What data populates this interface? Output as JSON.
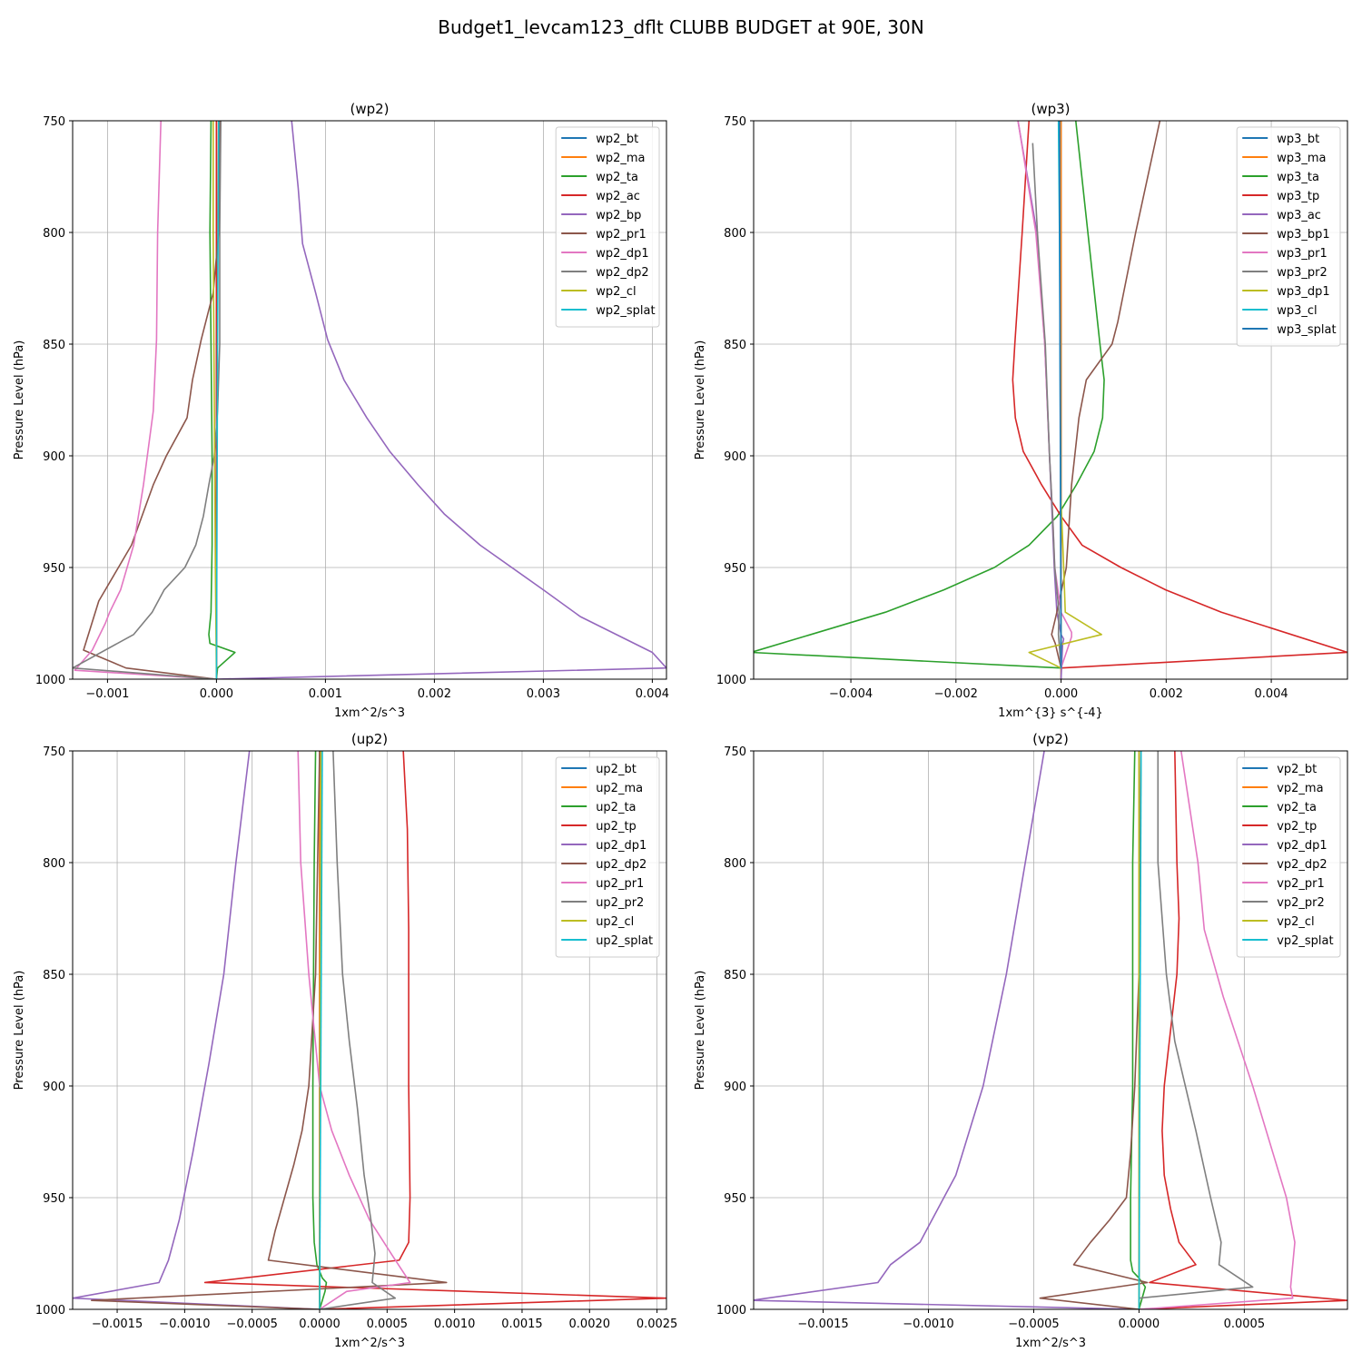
{
  "figure_title": "Budget1_levcam123_dflt CLUBB BUDGET at 90E, 30N",
  "colors": [
    "#1f77b4",
    "#ff7f0e",
    "#2ca02c",
    "#d62728",
    "#9467bd",
    "#8c564b",
    "#e377c2",
    "#7f7f7f",
    "#bcbd22",
    "#17becf"
  ],
  "chart_data": [
    {
      "type": "line",
      "title": "(wp2)",
      "xlabel": "1xm^2/s^3",
      "ylabel": "Pressure Level (hPa)",
      "xlim": [
        -0.00132,
        0.00413
      ],
      "ylim": [
        1000,
        750
      ],
      "grid": true,
      "legend": "top-right",
      "xticks": [
        -0.001,
        0.0,
        0.001,
        0.002,
        0.003,
        0.004
      ],
      "xtick_labels": [
        "−0.001",
        "0.000",
        "0.001",
        "0.002",
        "0.003",
        "0.004"
      ],
      "yticks": [
        750,
        800,
        850,
        900,
        950,
        1000
      ],
      "ytick_labels": [
        "750",
        "800",
        "850",
        "900",
        "950",
        "1000"
      ],
      "series": [
        {
          "name": "wp2_bt",
          "x": [
            0,
            0
          ],
          "y": [
            1000,
            750
          ]
        },
        {
          "name": "wp2_ma",
          "x": [
            0,
            0
          ],
          "y": [
            1000,
            750
          ]
        },
        {
          "name": "wp2_ta",
          "x": [
            -5e-05,
            -6e-05,
            -5e-05,
            -4e-05,
            -4e-05,
            -5e-05,
            -7e-05,
            -6e-05,
            0.00017,
            1e-05,
            0.0
          ],
          "y": [
            750,
            800,
            850,
            900,
            940,
            970,
            980,
            984,
            988,
            995,
            1000
          ]
        },
        {
          "name": "wp2_ac",
          "x": [
            0,
            0
          ],
          "y": [
            1000,
            750
          ]
        },
        {
          "name": "wp2_bp",
          "x": [
            0.00069,
            0.00075,
            0.00079,
            0.00091,
            0.00102,
            0.00117,
            0.00138,
            0.00159,
            0.00185,
            0.00209,
            0.00242,
            0.003,
            0.00334,
            0.004,
            0.00413,
            0.0
          ],
          "y": [
            750,
            780,
            805,
            827,
            848,
            866,
            883,
            898,
            913,
            926,
            940,
            960,
            972,
            988,
            995,
            1000
          ]
        },
        {
          "name": "wp2_pr1",
          "x": [
            3e-05,
            2e-05,
            -3e-05,
            -0.00014,
            -0.00022,
            -0.00027,
            -0.00046,
            -0.00058,
            -0.00078,
            -0.00108,
            -0.00122,
            -0.00083,
            0.0
          ],
          "y": [
            750,
            800,
            827,
            848,
            866,
            883,
            900,
            913,
            940,
            965,
            987,
            995,
            1000
          ]
        },
        {
          "name": "wp2_dp1",
          "x": [
            -0.00051,
            -0.00054,
            -0.00055,
            -0.00058,
            -0.00067,
            -0.00076,
            -0.00088,
            -0.00098,
            -0.00102,
            -0.00114,
            -0.0013,
            0.0
          ],
          "y": [
            750,
            800,
            848,
            880,
            913,
            940,
            960,
            970,
            975,
            987,
            996,
            1000
          ]
        },
        {
          "name": "wp2_dp2",
          "x": [
            4e-05,
            3e-05,
            3e-05,
            1e-05,
            -2e-05,
            -7e-05,
            -0.00012,
            -0.00019,
            -0.00029,
            -0.00048,
            -0.00059,
            -0.00076,
            -0.00132,
            0.0
          ],
          "y": [
            750,
            800,
            850,
            880,
            900,
            913,
            927,
            940,
            950,
            960,
            970,
            980,
            995,
            1000
          ]
        },
        {
          "name": "wp2_cl",
          "x": [
            -3e-05,
            -3e-05,
            -1e-05,
            0.0
          ],
          "y": [
            750,
            800,
            950,
            1000
          ]
        },
        {
          "name": "wp2_splat",
          "x": [
            2e-05,
            1e-05,
            0.0
          ],
          "y": [
            750,
            850,
            1000
          ]
        }
      ]
    },
    {
      "type": "line",
      "title": "(wp3)",
      "xlabel": "1xm^{3} s^{-4}",
      "ylabel": "Pressure Level (hPa)",
      "xlim": [
        -0.00585,
        0.00545
      ],
      "ylim": [
        1000,
        750
      ],
      "grid": true,
      "legend": "top-right",
      "xticks": [
        -0.004,
        -0.002,
        0.0,
        0.002,
        0.004
      ],
      "xtick_labels": [
        "−0.004",
        "−0.002",
        "0.000",
        "0.002",
        "0.004"
      ],
      "yticks": [
        750,
        800,
        850,
        900,
        950,
        1000
      ],
      "ytick_labels": [
        "750",
        "800",
        "850",
        "900",
        "950",
        "1000"
      ],
      "series": [
        {
          "name": "wp3_bt",
          "x": [
            0,
            0
          ],
          "y": [
            1000,
            750
          ]
        },
        {
          "name": "wp3_ma",
          "x": [
            0,
            0
          ],
          "y": [
            1000,
            750
          ]
        },
        {
          "name": "wp3_ta",
          "x": [
            0.00028,
            0.00051,
            0.00074,
            0.00082,
            0.00079,
            0.00063,
            0.00029,
            -7e-05,
            -0.00061,
            -0.00127,
            -0.00223,
            -0.00334,
            -0.0059,
            0.0
          ],
          "y": [
            750,
            800,
            850,
            866,
            883,
            898,
            913,
            927,
            940,
            950,
            960,
            970,
            988,
            995
          ]
        },
        {
          "name": "wp3_tp",
          "x": [
            -0.00061,
            -0.00074,
            -0.00088,
            -0.00092,
            -0.00087,
            -0.00072,
            -0.00037,
            0.0,
            0.0004,
            0.00114,
            0.00199,
            0.00305,
            0.00545,
            0.0
          ],
          "y": [
            750,
            800,
            850,
            866,
            883,
            898,
            913,
            927,
            940,
            950,
            960,
            970,
            988,
            995
          ]
        },
        {
          "name": "wp3_ac",
          "x": [
            -0.00082,
            -0.00046,
            -0.00031,
            -0.00022,
            -0.00017,
            -0.00013,
            -8e-05,
            0.0,
            5e-05,
            3e-05,
            0.0
          ],
          "y": [
            750,
            800,
            850,
            900,
            927,
            950,
            970,
            980,
            982,
            984,
            1000
          ]
        },
        {
          "name": "wp3_bp1",
          "x": [
            0.00188,
            0.00142,
            0.00108,
            0.00097,
            0.00048,
            0.00034,
            0.0002,
            0.0001,
            -8e-05,
            -0.00018,
            -0.00011,
            0.0
          ],
          "y": [
            750,
            800,
            840,
            850,
            866,
            883,
            913,
            950,
            970,
            980,
            984,
            995
          ]
        },
        {
          "name": "wp3_pr1",
          "x": [
            -0.00082,
            -0.00048,
            -0.00031,
            -0.00022,
            -0.00016,
            -0.00012,
            0.0,
            0.0002,
            0.0002,
            0.0
          ],
          "y": [
            750,
            800,
            850,
            900,
            927,
            950,
            970,
            979,
            981,
            995
          ]
        },
        {
          "name": "wp3_pr2",
          "x": [
            -0.00054,
            -0.00045,
            -0.0003,
            -0.00022,
            -0.00016,
            -0.00012,
            -4e-05,
            -5e-05,
            0.0
          ],
          "y": [
            760,
            800,
            850,
            900,
            927,
            950,
            970,
            980,
            995
          ]
        },
        {
          "name": "wp3_dp1",
          "x": [
            0.0,
            5e-05,
            8e-05,
            0.00077,
            -0.00061,
            0.0
          ],
          "y": [
            920,
            950,
            970,
            980,
            988,
            995
          ]
        },
        {
          "name": "wp3_cl",
          "x": [
            -5e-05,
            -3e-05,
            -1e-05,
            0.0
          ],
          "y": [
            750,
            800,
            900,
            995
          ]
        },
        {
          "name": "wp3_splat",
          "x": [
            -3e-05,
            -2e-05,
            0.0
          ],
          "y": [
            750,
            850,
            995
          ]
        }
      ]
    },
    {
      "type": "line",
      "title": "(up2)",
      "xlabel": "1xm^2/s^3",
      "ylabel": "Pressure Level (hPa)",
      "xlim": [
        -0.00183,
        0.00257
      ],
      "ylim": [
        1000,
        750
      ],
      "grid": true,
      "legend": "top-right",
      "xticks": [
        -0.0015,
        -0.001,
        -0.0005,
        0.0,
        0.0005,
        0.001,
        0.0015,
        0.002,
        0.0025
      ],
      "xtick_labels": [
        "−0.0015",
        "−0.0010",
        "−0.0005",
        "0.0000",
        "0.0005",
        "0.0010",
        "0.0015",
        "0.0020",
        "0.0025"
      ],
      "yticks": [
        750,
        800,
        850,
        900,
        950,
        1000
      ],
      "ytick_labels": [
        "750",
        "800",
        "850",
        "900",
        "950",
        "1000"
      ],
      "series": [
        {
          "name": "up2_bt",
          "x": [
            0,
            0
          ],
          "y": [
            1000,
            750
          ]
        },
        {
          "name": "up2_ma",
          "x": [
            0,
            0
          ],
          "y": [
            1000,
            750
          ]
        },
        {
          "name": "up2_ta",
          "x": [
            -3e-05,
            -4e-05,
            -5e-05,
            -5e-05,
            -4e-05,
            -2e-05,
            2e-05,
            5e-05,
            4e-05,
            0.0
          ],
          "y": [
            750,
            800,
            900,
            950,
            970,
            980,
            986,
            988,
            992,
            1000
          ]
        },
        {
          "name": "up2_tp",
          "x": [
            0.00062,
            0.00065,
            0.00066,
            0.00066,
            0.00067,
            0.00066,
            0.00059,
            -0.00085,
            0.00257,
            0.0
          ],
          "y": [
            750,
            785,
            830,
            900,
            950,
            970,
            978,
            988,
            995,
            1000
          ]
        },
        {
          "name": "up2_dp1",
          "x": [
            -0.00052,
            -0.00062,
            -0.00071,
            -0.00082,
            -0.00094,
            -0.00104,
            -0.00112,
            -0.00119,
            -0.00183,
            0.0
          ],
          "y": [
            750,
            800,
            850,
            890,
            930,
            960,
            978,
            988,
            995,
            1000
          ]
        },
        {
          "name": "up2_dp2",
          "x": [
            0.0,
            -3e-05,
            -8e-05,
            -0.00013,
            -0.00019,
            -0.00026,
            -0.00033,
            -0.00038,
            0.00094,
            -0.00169,
            0.0
          ],
          "y": [
            750,
            850,
            900,
            920,
            935,
            950,
            965,
            978,
            988,
            996,
            1000
          ]
        },
        {
          "name": "up2_pr1",
          "x": [
            -0.00016,
            -0.00014,
            -8e-05,
            0.0,
            9e-05,
            0.00022,
            0.00037,
            0.00054,
            0.00067,
            0.0002,
            0.0
          ],
          "y": [
            750,
            800,
            850,
            900,
            920,
            940,
            960,
            976,
            988,
            992,
            1000
          ]
        },
        {
          "name": "up2_pr2",
          "x": [
            0.0001,
            0.00013,
            0.00017,
            0.00022,
            0.00028,
            0.00033,
            0.00038,
            0.00041,
            0.00039,
            0.00056,
            0.0
          ],
          "y": [
            750,
            800,
            850,
            880,
            910,
            940,
            960,
            975,
            988,
            995,
            1000
          ]
        },
        {
          "name": "up2_cl",
          "x": [
            1e-05,
            0.0
          ],
          "y": [
            750,
            1000
          ]
        },
        {
          "name": "up2_splat",
          "x": [
            2e-05,
            0.0
          ],
          "y": [
            750,
            1000
          ]
        }
      ]
    },
    {
      "type": "line",
      "title": "(vp2)",
      "xlabel": "1xm^2/s^3",
      "ylabel": "Pressure Level (hPa)",
      "xlim": [
        -0.00183,
        0.00099
      ],
      "ylim": [
        1000,
        750
      ],
      "grid": true,
      "legend": "top-right",
      "xticks": [
        -0.0015,
        -0.001,
        -0.0005,
        0.0,
        0.0005
      ],
      "xtick_labels": [
        "−0.0015",
        "−0.0010",
        "−0.0005",
        "0.0000",
        "0.0005"
      ],
      "yticks": [
        750,
        800,
        850,
        900,
        950,
        1000
      ],
      "ytick_labels": [
        "750",
        "800",
        "850",
        "900",
        "950",
        "1000"
      ],
      "series": [
        {
          "name": "vp2_bt",
          "x": [
            0,
            0
          ],
          "y": [
            1000,
            750
          ]
        },
        {
          "name": "vp2_ma",
          "x": [
            0,
            0
          ],
          "y": [
            1000,
            750
          ]
        },
        {
          "name": "vp2_ta",
          "x": [
            -2e-05,
            -3e-05,
            -3e-05,
            -3e-05,
            -4e-05,
            -4e-05,
            -4e-05,
            -3e-05,
            0.0,
            3e-05,
            0.0
          ],
          "y": [
            750,
            800,
            850,
            900,
            950,
            970,
            978,
            983,
            986,
            990,
            1000
          ]
        },
        {
          "name": "vp2_tp",
          "x": [
            0.00017,
            0.00018,
            0.00019,
            0.00018,
            0.00015,
            0.00012,
            0.00011,
            0.00012,
            0.00015,
            0.00019,
            0.00027,
            5e-05,
            0.00099,
            0.0
          ],
          "y": [
            750,
            800,
            825,
            850,
            875,
            900,
            920,
            940,
            955,
            970,
            980,
            988,
            996,
            1000
          ]
        },
        {
          "name": "vp2_dp1",
          "x": [
            -0.00045,
            -0.00054,
            -0.00063,
            -0.00074,
            -0.00087,
            -0.00104,
            -0.00118,
            -0.00124,
            -0.00184,
            0.0
          ],
          "y": [
            750,
            800,
            850,
            900,
            940,
            970,
            980,
            988,
            996,
            1000
          ]
        },
        {
          "name": "vp2_dp2",
          "x": [
            1e-05,
            0.0,
            -2e-05,
            -4e-05,
            -6e-05,
            -0.00014,
            -0.00023,
            -0.00031,
            4e-05,
            -0.00047,
            0.0
          ],
          "y": [
            750,
            850,
            900,
            930,
            950,
            960,
            970,
            980,
            988,
            995,
            1000
          ]
        },
        {
          "name": "vp2_pr1",
          "x": [
            0.0002,
            0.00028,
            0.00031,
            0.0004,
            0.00054,
            0.0007,
            0.00074,
            0.00073,
            0.00072,
            0.00073,
            0.0
          ],
          "y": [
            750,
            800,
            830,
            860,
            900,
            950,
            970,
            980,
            990,
            995,
            1000
          ]
        },
        {
          "name": "vp2_pr2",
          "x": [
            9e-05,
            9e-05,
            0.00013,
            0.00017,
            0.00027,
            0.00034,
            0.00039,
            0.00038,
            0.00054,
            0.0
          ],
          "y": [
            750,
            800,
            850,
            880,
            920,
            950,
            970,
            980,
            990,
            995
          ]
        },
        {
          "name": "vp2_cl",
          "x": [
            0.0,
            0.0
          ],
          "y": [
            750,
            1000
          ]
        },
        {
          "name": "vp2_splat",
          "x": [
            1e-05,
            0.0
          ],
          "y": [
            750,
            1000
          ]
        }
      ]
    }
  ]
}
